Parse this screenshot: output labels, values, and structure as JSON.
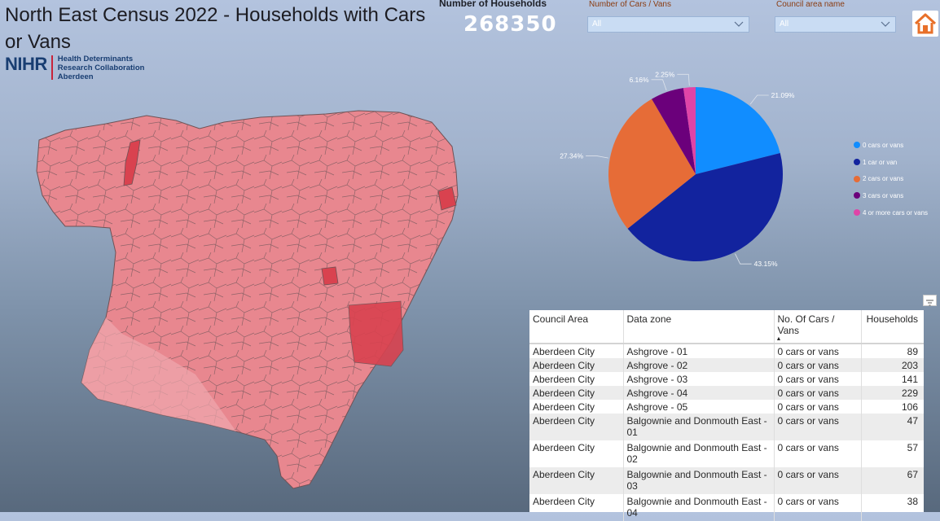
{
  "header": {
    "title": "North East Census 2022 - Households with Cars or Vans",
    "logo_mark": "NIHR",
    "logo_line1": "Health Determinants",
    "logo_line2": "Research Collaboration",
    "logo_line3": "Aberdeen"
  },
  "kpi": {
    "label": "Number of Households",
    "value": "268350"
  },
  "slicers": {
    "cars": {
      "label": "Number of Cars / Vans",
      "value": "All"
    },
    "council": {
      "label": "Council area name",
      "value": "All"
    }
  },
  "chart_data": {
    "type": "pie",
    "categories": [
      "0 cars or vans",
      "1 car or van",
      "2 cars or vans",
      "3 cars or vans",
      "4 or more cars or vans"
    ],
    "values": [
      21.09,
      43.15,
      27.34,
      6.16,
      2.25
    ],
    "data_labels": [
      "21.09%",
      "43.15%",
      "27.34%",
      "6.16%",
      "2.25%"
    ],
    "colors": [
      "#118dff",
      "#12239e",
      "#e66c37",
      "#6b007b",
      "#e044a7"
    ],
    "legend_position": "right"
  },
  "table": {
    "headers": [
      "Council Area",
      "Data zone",
      "No. Of Cars / Vans",
      "Households"
    ],
    "rows": [
      [
        "Aberdeen City",
        "Ashgrove - 01",
        "0 cars or vans",
        "89"
      ],
      [
        "Aberdeen City",
        "Ashgrove - 02",
        "0 cars or vans",
        "203"
      ],
      [
        "Aberdeen City",
        "Ashgrove - 03",
        "0 cars or vans",
        "141"
      ],
      [
        "Aberdeen City",
        "Ashgrove - 04",
        "0 cars or vans",
        "229"
      ],
      [
        "Aberdeen City",
        "Ashgrove - 05",
        "0 cars or vans",
        "106"
      ],
      [
        "Aberdeen City",
        "Balgownie and Donmouth East - 01",
        "0 cars or vans",
        "47"
      ],
      [
        "Aberdeen City",
        "Balgownie and Donmouth East - 02",
        "0 cars or vans",
        "57"
      ],
      [
        "Aberdeen City",
        "Balgownie and Donmouth East - 03",
        "0 cars or vans",
        "67"
      ],
      [
        "Aberdeen City",
        "Balgownie and Donmouth East - 04",
        "0 cars or vans",
        "38"
      ]
    ]
  },
  "icons": {
    "home": "home-icon",
    "filter": "filter-icon",
    "chevron": "chevron-down-icon",
    "sort": "sort-up-icon"
  },
  "map": {
    "fill": "#e8878f",
    "stroke": "#7a5a5e",
    "highlight": "#d9424f"
  }
}
